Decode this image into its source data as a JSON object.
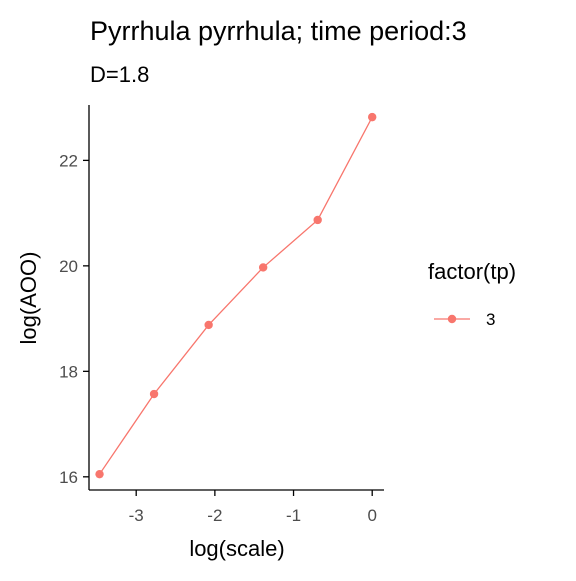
{
  "chart_data": {
    "type": "line",
    "title": "Pyrrhula pyrrhula; time period:3",
    "subtitle": "D=1.8",
    "xlabel": "log(scale)",
    "ylabel": "log(AOO)",
    "xlim": [
      -3.6,
      0.15
    ],
    "ylim": [
      15.75,
      23.05
    ],
    "x_ticks": [
      -3,
      -2,
      -1,
      0
    ],
    "x_tick_labels": [
      "-3",
      "-2",
      "-1",
      "0"
    ],
    "y_ticks": [
      16,
      18,
      20,
      22
    ],
    "y_tick_labels": [
      "16",
      "18",
      "20",
      "22"
    ],
    "grid": false,
    "legend": {
      "title": "factor(tp)",
      "placement": "right",
      "entries": [
        "3"
      ]
    },
    "series": [
      {
        "name": "3",
        "color": "#F8766D",
        "x": [
          -3.466,
          -2.773,
          -2.079,
          -1.386,
          -0.693,
          0
        ],
        "y": [
          16.05,
          17.57,
          18.88,
          19.97,
          20.87,
          22.82
        ]
      }
    ]
  }
}
